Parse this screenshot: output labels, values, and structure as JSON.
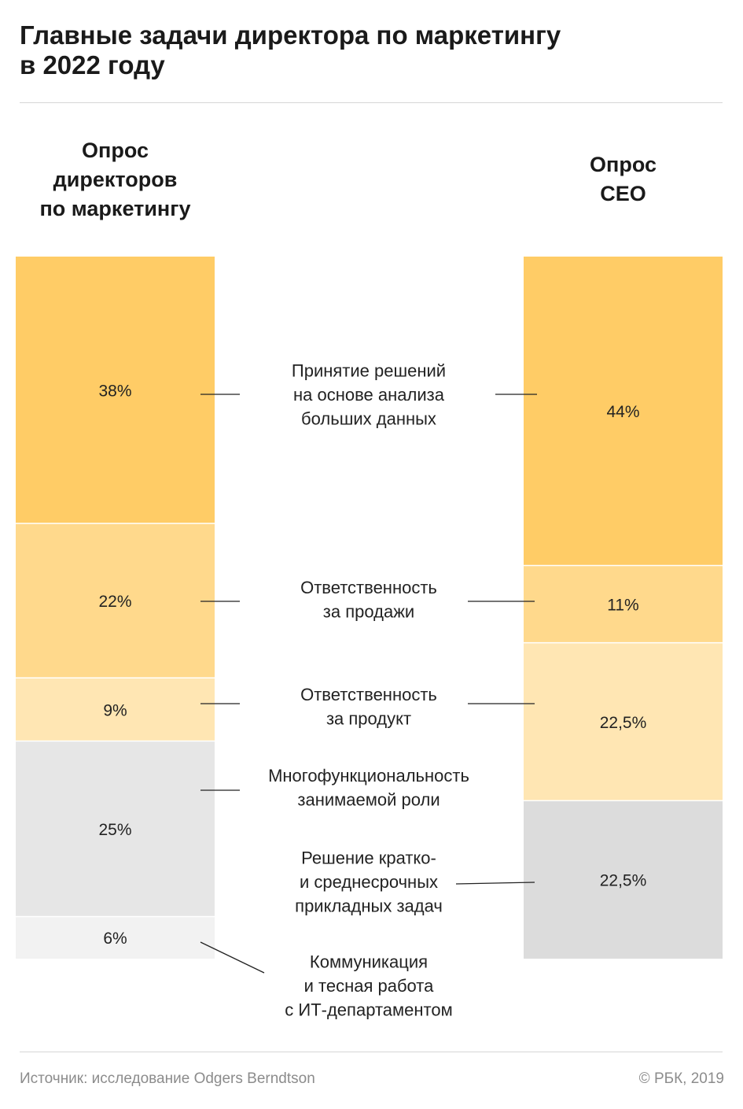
{
  "title": [
    "Главные задачи директора по маркетингу",
    "в 2022 году"
  ],
  "columns": [
    {
      "heading": [
        "Опрос",
        "директоров",
        "по маркетингу"
      ]
    },
    {
      "heading": [
        "Опрос",
        "CEO"
      ]
    }
  ],
  "colors": {
    "c1": "#ffcc66",
    "c2": "#ffd98c",
    "c3": "#ffe6b3",
    "g1": "#e6e6e6",
    "g2": "#f2f2f2",
    "g3": "#dcdcdc",
    "line": "#222222",
    "text": "#222222"
  },
  "chart_data": {
    "type": "bar",
    "stacked": true,
    "normalized": true,
    "groups": [
      "Опрос директоров по маркетингу",
      "Опрос CEO"
    ],
    "categories": [
      [
        "Принятие решений",
        "на основе анализа",
        "больших данных"
      ],
      [
        "Ответственность",
        "за продажи"
      ],
      [
        "Ответственность",
        "за продукт"
      ],
      [
        "Многофункциональность",
        "занимаемой роли"
      ],
      [
        "Решение кратко-",
        "и среднесрочных",
        "прикладных задач"
      ],
      [
        "Коммуникация",
        "и тесная работа",
        "с ИТ-департаментом"
      ]
    ],
    "series": [
      {
        "segments": [
          {
            "category": 0,
            "value": 38,
            "label": "38%",
            "color": "#ffcc66"
          },
          {
            "category": 1,
            "value": 22,
            "label": "22%",
            "color": "#ffd98c"
          },
          {
            "category": 2,
            "value": 9,
            "label": "9%",
            "color": "#ffe6b3"
          },
          {
            "category": 3,
            "value": 25,
            "label": "25%",
            "color": "#e6e6e6"
          },
          {
            "category": 5,
            "value": 6,
            "label": "6%",
            "color": "#f2f2f2"
          }
        ]
      },
      {
        "segments": [
          {
            "category": 0,
            "value": 44,
            "label": "44%",
            "color": "#ffcc66"
          },
          {
            "category": 1,
            "value": 11,
            "label": "11%",
            "color": "#ffd98c"
          },
          {
            "category": 2,
            "value": 22.5,
            "label": "22,5%",
            "color": "#ffe6b3"
          },
          {
            "category": 4,
            "value": 22.5,
            "label": "22,5%",
            "color": "#dcdcdc"
          }
        ]
      }
    ]
  },
  "footer": {
    "source": "Источник: исследование Odgers Berndtson",
    "copyright": "© РБК, 2019"
  }
}
